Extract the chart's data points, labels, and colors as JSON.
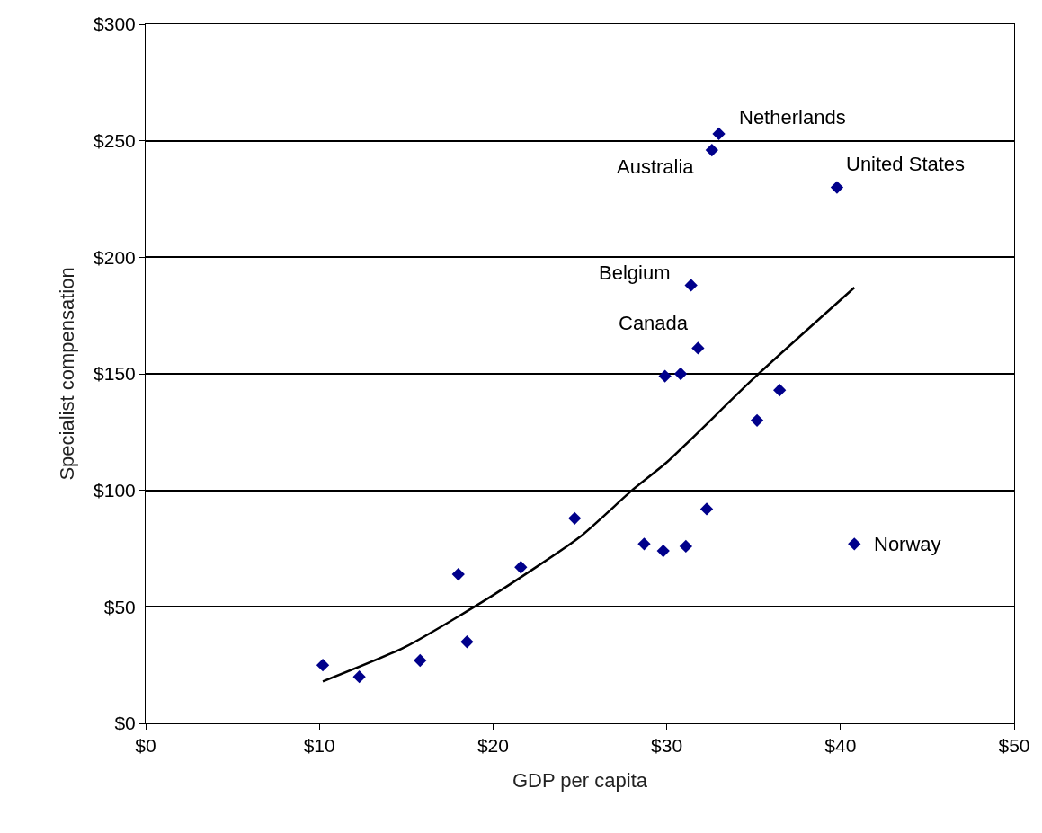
{
  "chart_data": {
    "type": "scatter",
    "xlabel": "GDP per capita",
    "ylabel": "Specialist compensation",
    "xlim": [
      0,
      50
    ],
    "ylim": [
      0,
      300
    ],
    "xticks": [
      {
        "value": 0,
        "label": "$0"
      },
      {
        "value": 10,
        "label": "$10"
      },
      {
        "value": 20,
        "label": "$20"
      },
      {
        "value": 30,
        "label": "$30"
      },
      {
        "value": 40,
        "label": "$40"
      },
      {
        "value": 50,
        "label": "$50"
      }
    ],
    "yticks": [
      {
        "value": 0,
        "label": "$0"
      },
      {
        "value": 50,
        "label": "$50"
      },
      {
        "value": 100,
        "label": "$100"
      },
      {
        "value": 150,
        "label": "$150"
      },
      {
        "value": 200,
        "label": "$200"
      },
      {
        "value": 250,
        "label": "$250"
      },
      {
        "value": 300,
        "label": "$300"
      }
    ],
    "grid": "y",
    "series": [
      {
        "marker": "diamond",
        "color": "#00008b",
        "x": [
          10.2,
          12.3,
          15.8,
          18.0,
          18.5,
          21.6,
          24.7,
          28.7,
          29.8,
          29.9,
          30.8,
          31.1,
          31.4,
          31.8,
          32.3,
          32.6,
          33.0,
          35.2,
          36.5,
          39.8,
          40.8
        ],
        "values": [
          25,
          20,
          27,
          64,
          35,
          67,
          88,
          77,
          74,
          149,
          150,
          76,
          188,
          161,
          92,
          246,
          253,
          130,
          143,
          230,
          77
        ]
      },
      {
        "type": "line",
        "marker": "none",
        "line_style": "solid",
        "color": "#000000",
        "x": [
          10.2,
          15,
          20,
          25,
          28,
          30,
          35,
          40.8
        ],
        "values": [
          18,
          33,
          55,
          80,
          100,
          112,
          148,
          187
        ]
      }
    ],
    "annotations": [
      {
        "text": "Netherlands",
        "x": 33.0,
        "y": 253
      },
      {
        "text": "Australia",
        "x": 32.6,
        "y": 246
      },
      {
        "text": "United States",
        "x": 39.8,
        "y": 230
      },
      {
        "text": "Belgium",
        "x": 31.4,
        "y": 188
      },
      {
        "text": "Canada",
        "x": 31.8,
        "y": 161
      },
      {
        "text": "Norway",
        "x": 40.8,
        "y": 77
      }
    ]
  }
}
